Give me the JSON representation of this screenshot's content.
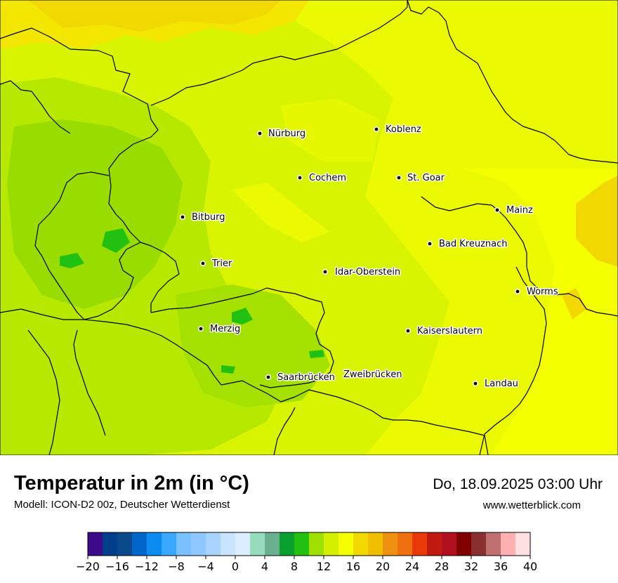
{
  "title": "Temperatur in 2m (in °C)",
  "model": "Modell: ICON-D2 00z, Deutscher Wetterdienst",
  "datetime": "Do, 18.09.2025 03:00 Uhr",
  "website": "www.wetterblick.com",
  "cities": [
    {
      "name": "Nürburg"
    },
    {
      "name": "Koblenz"
    },
    {
      "name": "Cochem"
    },
    {
      "name": "St. Goar"
    },
    {
      "name": "Bitburg"
    },
    {
      "name": "Mainz"
    },
    {
      "name": "Bad Kreuznach"
    },
    {
      "name": "Trier"
    },
    {
      "name": "Idar-Oberstein"
    },
    {
      "name": "Worms"
    },
    {
      "name": "Merzig"
    },
    {
      "name": "Kaiserslautern"
    },
    {
      "name": "Saarbrücken"
    },
    {
      "name": "Zweibrücken"
    },
    {
      "name": "Landau"
    }
  ],
  "legend": {
    "min": -20,
    "max": 40,
    "tick_labels": [
      "−20",
      "−16",
      "−12",
      "−8",
      "−4",
      "0",
      "4",
      "8",
      "12",
      "16",
      "20",
      "24",
      "28",
      "32",
      "36",
      "40"
    ],
    "colors": [
      "#3d0a8a",
      "#003d8a",
      "#0a4a8c",
      "#0066cc",
      "#0a8cf0",
      "#38a8ff",
      "#78c0ff",
      "#8ec8ff",
      "#a8d4ff",
      "#c8e4ff",
      "#daeeff",
      "#98dcc0",
      "#6ab090",
      "#0aa030",
      "#22c010",
      "#a0e000",
      "#d4f000",
      "#f4ff00",
      "#f0d800",
      "#f0c000",
      "#f09010",
      "#f07010",
      "#e83a08",
      "#c01a10",
      "#b01020",
      "#800000",
      "#8a3030",
      "#c07070",
      "#ffb0b0",
      "#ffe0e0"
    ]
  }
}
